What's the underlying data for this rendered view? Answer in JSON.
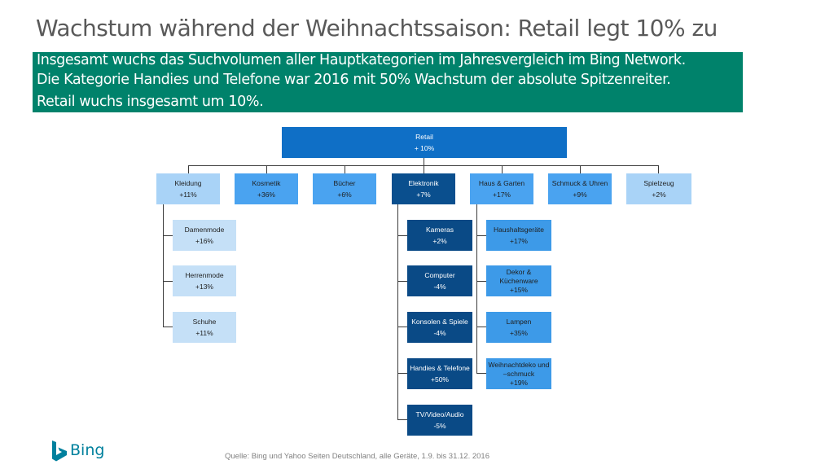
{
  "title": "Wachstum während der Weihnachtssaison: Retail legt 10% zu",
  "banner": {
    "line1": "Insgesamt wuchs das Suchvolumen aller Hauptkategorien im Jahresvergleich im Bing Network.",
    "line2": "Die Kategorie Handies und Telefone war 2016 mit 50% Wachstum der absolute Spitzenreiter.",
    "line3": "Retail wuchs insgesamt um 10%."
  },
  "root": {
    "label": "Retail",
    "value": "+ 10%"
  },
  "categories": [
    {
      "label": "Kleidung",
      "value": "+11%"
    },
    {
      "label": "Kosmetik",
      "value": "+36%"
    },
    {
      "label": "Bücher",
      "value": "+6%"
    },
    {
      "label": "Elektronik",
      "value": "+7%"
    },
    {
      "label": "Haus & Garten",
      "value": "+17%"
    },
    {
      "label": "Schmuck & Uhren",
      "value": "+9%"
    },
    {
      "label": "Spielzeug",
      "value": "+2%"
    }
  ],
  "kleidung_children": [
    {
      "label": "Damenmode",
      "value": "+16%"
    },
    {
      "label": "Herrenmode",
      "value": "+13%"
    },
    {
      "label": "Schuhe",
      "value": "+11%"
    }
  ],
  "elektronik_children": [
    {
      "label": "Kameras",
      "value": "+2%"
    },
    {
      "label": "Computer",
      "value": "-4%"
    },
    {
      "label": "Konsolen & Spiele",
      "value": "-4%"
    },
    {
      "label": "Handies & Telefone",
      "value": "+50%"
    },
    {
      "label": "TV/Video/Audio",
      "value": "-5%"
    }
  ],
  "haus_children": [
    {
      "label": "Haushaltsgeräte",
      "value": "+17%"
    },
    {
      "label": "Dekor &",
      "label2": "Küchenware",
      "value": "+15%"
    },
    {
      "label": "Lampen",
      "value": "+35%"
    },
    {
      "label": "Weihnachtdeko und",
      "label2": "–schmuck",
      "value": "+19%"
    }
  ],
  "logo": {
    "text": "Bing",
    "icon": "bing-logo-icon"
  },
  "source": "Quelle: Bing und Yahoo Seiten Deutschland, alle Geräte, 1.9. bis 31.12. 2016",
  "colors": {
    "banner": "#00826b",
    "root": "#0f6fc6",
    "dark": "#0a4f8e",
    "light": "#a9d3f7",
    "mid": "#4aa3f0"
  }
}
